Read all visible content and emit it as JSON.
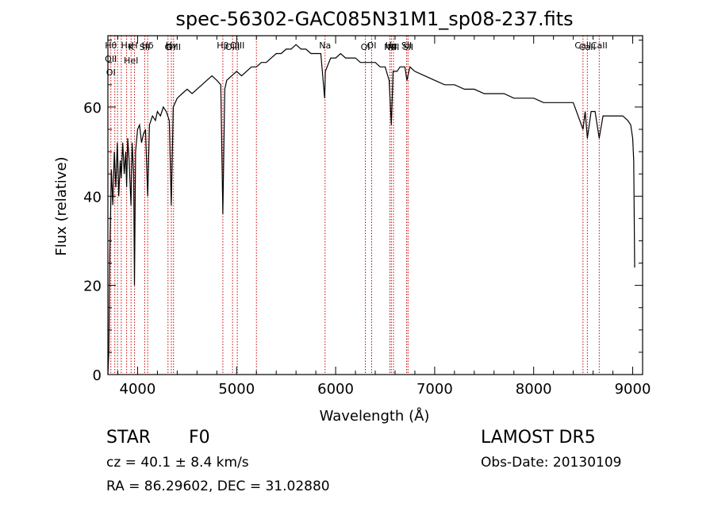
{
  "chart_data": {
    "type": "line",
    "title": "spec-56302-GAC085N31M1_sp08-237.fits",
    "xlabel": "Wavelength (Å)",
    "ylabel": "Flux (relative)",
    "xlim": [
      3700,
      9100
    ],
    "ylim": [
      0,
      76
    ],
    "xticks": [
      4000,
      5000,
      6000,
      7000,
      8000,
      9000
    ],
    "yticks": [
      0,
      20,
      40,
      60
    ],
    "grid": false,
    "line_color": "#000000",
    "marker_color": "#cc0000",
    "series": [
      {
        "x": [
          3700,
          3710,
          3720,
          3735,
          3750,
          3765,
          3780,
          3795,
          3810,
          3825,
          3835,
          3850,
          3865,
          3880,
          3889,
          3900,
          3915,
          3933,
          3945,
          3960,
          3968,
          3980,
          4000,
          4020,
          4040,
          4060,
          4080,
          4102,
          4120,
          4150,
          4180,
          4200,
          4230,
          4260,
          4290,
          4320,
          4340,
          4360,
          4380,
          4400,
          4450,
          4500,
          4550,
          4600,
          4650,
          4700,
          4750,
          4800,
          4840,
          4861,
          4880,
          4900,
          4950,
          5000,
          5050,
          5100,
          5150,
          5200,
          5250,
          5300,
          5350,
          5400,
          5450,
          5500,
          5550,
          5600,
          5650,
          5700,
          5750,
          5800,
          5850,
          5889,
          5896,
          5950,
          6000,
          6050,
          6100,
          6150,
          6200,
          6250,
          6300,
          6350,
          6400,
          6450,
          6500,
          6540,
          6563,
          6580,
          6620,
          6650,
          6700,
          6720,
          6750,
          6800,
          6900,
          7000,
          7100,
          7200,
          7300,
          7400,
          7500,
          7600,
          7700,
          7800,
          7900,
          8000,
          8100,
          8200,
          8300,
          8400,
          8498,
          8520,
          8542,
          8580,
          8620,
          8662,
          8700,
          8750,
          8800,
          8850,
          8900,
          8950,
          8980,
          9000,
          9010,
          9020
        ],
        "values": [
          0,
          5,
          28,
          46,
          38,
          50,
          42,
          52,
          40,
          48,
          44,
          52,
          45,
          50,
          42,
          53,
          48,
          38,
          52,
          45,
          20,
          50,
          55,
          56,
          52,
          54,
          55,
          40,
          56,
          58,
          57,
          59,
          58,
          60,
          59,
          57,
          38,
          60,
          61,
          62,
          63,
          64,
          63,
          64,
          65,
          66,
          67,
          66,
          65,
          36,
          64,
          66,
          67,
          68,
          67,
          68,
          69,
          69,
          70,
          70,
          71,
          72,
          72,
          73,
          73,
          74,
          73,
          73,
          72,
          72,
          72,
          62,
          68,
          71,
          71,
          72,
          71,
          71,
          71,
          70,
          70,
          70,
          70,
          69,
          69,
          66,
          56,
          68,
          68,
          69,
          69,
          66,
          69,
          68,
          67,
          66,
          65,
          65,
          64,
          64,
          63,
          63,
          63,
          62,
          62,
          62,
          61,
          61,
          61,
          61,
          55,
          59,
          53,
          59,
          59,
          53,
          58,
          58,
          58,
          58,
          58,
          57,
          56,
          53,
          48,
          24
        ]
      }
    ],
    "line_markers": [
      {
        "x": 3730,
        "labels": [
          "Hθ",
          "OII",
          "OI"
        ]
      },
      {
        "x": 3770,
        "labels": []
      },
      {
        "x": 3798,
        "labels": []
      },
      {
        "x": 3835,
        "labels": []
      },
      {
        "x": 3889,
        "labels": [
          "Hε"
        ]
      },
      {
        "x": 3934,
        "labels": [
          "K",
          "HeI"
        ]
      },
      {
        "x": 3969,
        "labels": [
          "H"
        ]
      },
      {
        "x": 4072,
        "labels": [
          "SII"
        ]
      },
      {
        "x": 4102,
        "labels": [
          "Hδ"
        ]
      },
      {
        "x": 4307,
        "labels": [
          "G"
        ]
      },
      {
        "x": 4341,
        "labels": [
          "Hγ"
        ]
      },
      {
        "x": 4363,
        "labels": [
          "OIII"
        ]
      },
      {
        "x": 4861,
        "labels": [
          "Hβ"
        ]
      },
      {
        "x": 4959,
        "labels": [
          "OIII"
        ]
      },
      {
        "x": 5007,
        "labels": [
          "OIII"
        ]
      },
      {
        "x": 5200,
        "labels": []
      },
      {
        "x": 5893,
        "labels": [
          "Na"
        ]
      },
      {
        "x": 6300,
        "labels": [
          "OI"
        ]
      },
      {
        "x": 6364,
        "labels": [
          "OI"
        ]
      },
      {
        "x": 6548,
        "labels": [
          "NII"
        ]
      },
      {
        "x": 6563,
        "labels": [
          "Hα"
        ]
      },
      {
        "x": 6584,
        "labels": [
          "NII"
        ]
      },
      {
        "x": 6717,
        "labels": [
          "SII"
        ]
      },
      {
        "x": 6731,
        "labels": [
          "SII"
        ]
      },
      {
        "x": 8498,
        "labels": [
          "CaII"
        ]
      },
      {
        "x": 8542,
        "labels": [
          "CaII"
        ]
      },
      {
        "x": 8662,
        "labels": [
          "CaII"
        ]
      }
    ]
  },
  "info": {
    "object_class": "STAR",
    "subclass": "F0",
    "redshift": "cz = 40.1 ± 8.4 km/s",
    "coords": "RA =  86.29602, DEC =  31.02880",
    "survey": "LAMOST DR5",
    "obs_date": "Obs-Date: 20130109"
  }
}
